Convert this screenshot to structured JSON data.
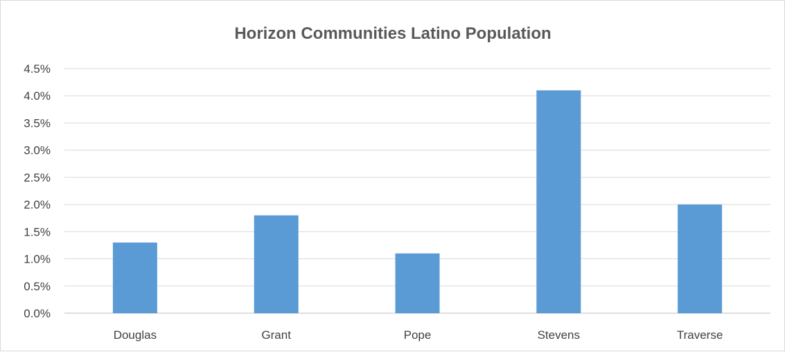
{
  "chart_data": {
    "type": "bar",
    "title": "Horizon Communities Latino Population",
    "xlabel": "",
    "ylabel": "",
    "categories": [
      "Douglas",
      "Grant",
      "Pope",
      "Stevens",
      "Traverse"
    ],
    "values": [
      0.013,
      0.018,
      0.011,
      0.041,
      0.02
    ],
    "ylim": [
      0,
      0.045
    ],
    "yticks": [
      0,
      0.005,
      0.01,
      0.015,
      0.02,
      0.025,
      0.03,
      0.035,
      0.04,
      0.045
    ],
    "ytick_labels": [
      "0.0%",
      "0.5%",
      "1.0%",
      "1.5%",
      "2.0%",
      "2.5%",
      "3.0%",
      "3.5%",
      "4.0%",
      "4.5%"
    ],
    "grid": true,
    "legend": "none",
    "bar_color": "#5b9bd5"
  }
}
